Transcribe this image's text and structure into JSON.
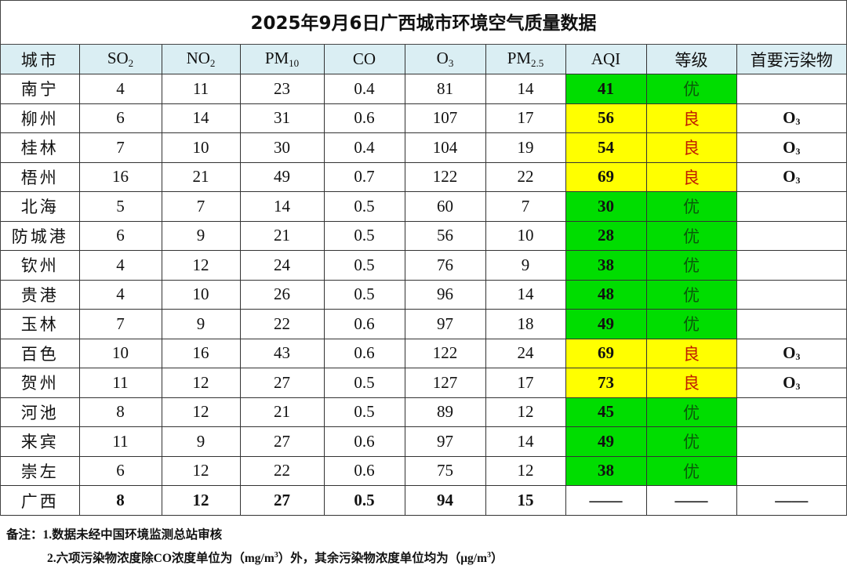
{
  "title": "2025年9月6日广西城市环境空气质量数据",
  "headers": [
    {
      "main": "城市",
      "sub": ""
    },
    {
      "main": "SO",
      "sub": "2"
    },
    {
      "main": "NO",
      "sub": "2"
    },
    {
      "main": "PM",
      "sub": "10"
    },
    {
      "main": "CO",
      "sub": ""
    },
    {
      "main": "O",
      "sub": "3"
    },
    {
      "main": "PM",
      "sub": "2.5"
    },
    {
      "main": "AQI",
      "sub": ""
    },
    {
      "main": "等级",
      "sub": ""
    },
    {
      "main": "首要污染物",
      "sub": ""
    }
  ],
  "colors": {
    "good": "#00dd00",
    "moderate": "#ffff00",
    "header": "#daeef3"
  },
  "rows": [
    {
      "city": "南宁",
      "so2": "4",
      "no2": "11",
      "pm10": "23",
      "co": "0.4",
      "o3": "81",
      "pm25": "14",
      "aqi": "41",
      "level": "优",
      "primary": ""
    },
    {
      "city": "柳州",
      "so2": "6",
      "no2": "14",
      "pm10": "31",
      "co": "0.6",
      "o3": "107",
      "pm25": "17",
      "aqi": "56",
      "level": "良",
      "primary": "O3"
    },
    {
      "city": "桂林",
      "so2": "7",
      "no2": "10",
      "pm10": "30",
      "co": "0.4",
      "o3": "104",
      "pm25": "19",
      "aqi": "54",
      "level": "良",
      "primary": "O3"
    },
    {
      "city": "梧州",
      "so2": "16",
      "no2": "21",
      "pm10": "49",
      "co": "0.7",
      "o3": "122",
      "pm25": "22",
      "aqi": "69",
      "level": "良",
      "primary": "O3"
    },
    {
      "city": "北海",
      "so2": "5",
      "no2": "7",
      "pm10": "14",
      "co": "0.5",
      "o3": "60",
      "pm25": "7",
      "aqi": "30",
      "level": "优",
      "primary": ""
    },
    {
      "city": "防城港",
      "so2": "6",
      "no2": "9",
      "pm10": "21",
      "co": "0.5",
      "o3": "56",
      "pm25": "10",
      "aqi": "28",
      "level": "优",
      "primary": ""
    },
    {
      "city": "钦州",
      "so2": "4",
      "no2": "12",
      "pm10": "24",
      "co": "0.5",
      "o3": "76",
      "pm25": "9",
      "aqi": "38",
      "level": "优",
      "primary": ""
    },
    {
      "city": "贵港",
      "so2": "4",
      "no2": "10",
      "pm10": "26",
      "co": "0.5",
      "o3": "96",
      "pm25": "14",
      "aqi": "48",
      "level": "优",
      "primary": ""
    },
    {
      "city": "玉林",
      "so2": "7",
      "no2": "9",
      "pm10": "22",
      "co": "0.6",
      "o3": "97",
      "pm25": "18",
      "aqi": "49",
      "level": "优",
      "primary": ""
    },
    {
      "city": "百色",
      "so2": "10",
      "no2": "16",
      "pm10": "43",
      "co": "0.6",
      "o3": "122",
      "pm25": "24",
      "aqi": "69",
      "level": "良",
      "primary": "O3"
    },
    {
      "city": "贺州",
      "so2": "11",
      "no2": "12",
      "pm10": "27",
      "co": "0.5",
      "o3": "127",
      "pm25": "17",
      "aqi": "73",
      "level": "良",
      "primary": "O3"
    },
    {
      "city": "河池",
      "so2": "8",
      "no2": "12",
      "pm10": "21",
      "co": "0.5",
      "o3": "89",
      "pm25": "12",
      "aqi": "45",
      "level": "优",
      "primary": ""
    },
    {
      "city": "来宾",
      "so2": "11",
      "no2": "9",
      "pm10": "27",
      "co": "0.6",
      "o3": "97",
      "pm25": "14",
      "aqi": "49",
      "level": "优",
      "primary": ""
    },
    {
      "city": "崇左",
      "so2": "6",
      "no2": "12",
      "pm10": "22",
      "co": "0.6",
      "o3": "75",
      "pm25": "12",
      "aqi": "38",
      "level": "优",
      "primary": ""
    }
  ],
  "total": {
    "city": "广西",
    "so2": "8",
    "no2": "12",
    "pm10": "27",
    "co": "0.5",
    "o3": "94",
    "pm25": "15",
    "aqi": "——",
    "level": "——",
    "primary": "——"
  },
  "notes": {
    "label": "备注：",
    "line1": "1.数据未经中国环境监测总站审核",
    "line2_a": "2.六项污染物浓度除CO浓度单位为（mg/m",
    "line2_b": "）外，其余污染物浓度单位均为（μg/m",
    "line2_c": "）",
    "sup": "3"
  }
}
